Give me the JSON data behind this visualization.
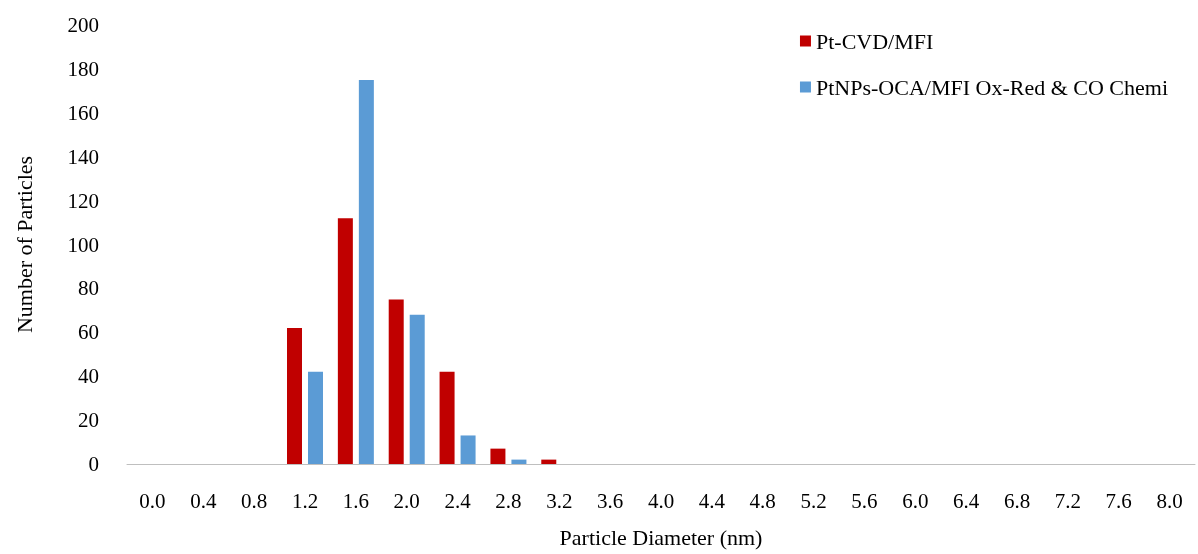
{
  "chart_data": {
    "type": "bar",
    "xlabel": "Particle Diameter (nm)",
    "ylabel": "Number of Particles",
    "categories": [
      "0.0",
      "0.4",
      "0.8",
      "1.2",
      "1.6",
      "2.0",
      "2.4",
      "2.8",
      "3.2",
      "3.6",
      "4.0",
      "4.4",
      "4.8",
      "5.2",
      "5.6",
      "6.0",
      "6.4",
      "6.8",
      "7.2",
      "7.6",
      "8.0"
    ],
    "series": [
      {
        "name": "Pt-CVD/MFI",
        "color": "#c00000",
        "values": [
          0,
          0,
          0,
          62,
          112,
          75,
          42,
          7,
          2,
          0,
          0,
          0,
          0,
          0,
          0,
          0,
          0,
          0,
          0,
          0,
          0
        ]
      },
      {
        "name": "PtNPs-OCA/MFI Ox-Red & CO Chemi",
        "color": "#5b9bd5",
        "values": [
          0,
          0,
          0,
          42,
          175,
          68,
          13,
          2,
          0,
          0,
          0,
          0,
          0,
          0,
          0,
          0,
          0,
          0,
          0,
          0,
          0
        ]
      }
    ],
    "ylim": [
      0,
      200
    ],
    "yticks": [
      0,
      20,
      40,
      60,
      80,
      100,
      120,
      140,
      160,
      180,
      200
    ],
    "grid": false,
    "legend": "top right"
  }
}
